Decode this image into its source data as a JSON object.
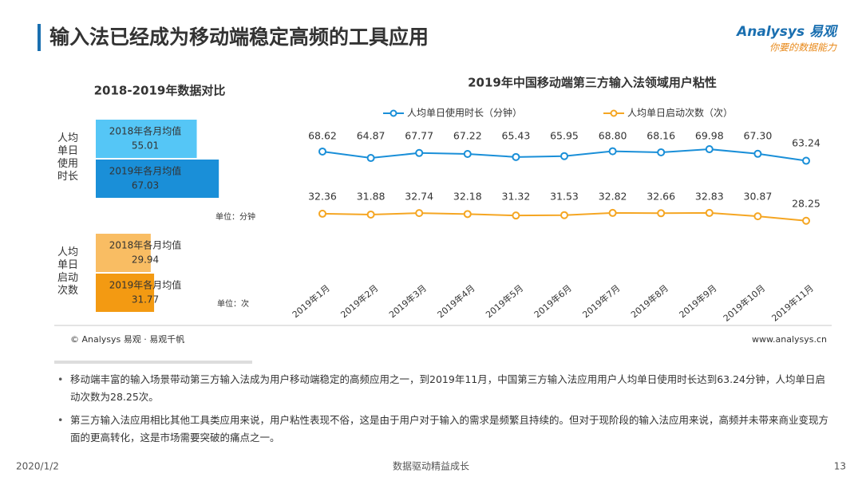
{
  "header": {
    "title": "输入法已经成为移动端稳定高频的工具应用",
    "logo": "Analysys 易观",
    "slogan": "你要的数据能力"
  },
  "chart_data": [
    {
      "type": "hbar",
      "title": "2018-2019年数据对比",
      "groups": [
        {
          "name": "人均单日使用时长",
          "unit": "单位：分钟",
          "categories": [
            "2018年各月均值",
            "2019年各月均值"
          ],
          "values": [
            55.01,
            67.03
          ],
          "colors": [
            "#55c6f6",
            "#1a8fd8"
          ]
        },
        {
          "name": "人均单日启动次数",
          "unit": "单位：次",
          "categories": [
            "2018年各月均值",
            "2019年各月均值"
          ],
          "values": [
            29.94,
            31.77
          ],
          "colors": [
            "#f9bd63",
            "#f39a12"
          ]
        }
      ]
    },
    {
      "type": "line",
      "title": "2019年中国移动端第三方输入法领域用户粘性",
      "categories": [
        "2019年1月",
        "2019年2月",
        "2019年3月",
        "2019年4月",
        "2019年5月",
        "2019年6月",
        "2019年7月",
        "2019年8月",
        "2019年9月",
        "2019年10月",
        "2019年11月"
      ],
      "series": [
        {
          "name": "人均单日使用时长（分钟）",
          "color": "#1a8fd8",
          "values": [
            68.62,
            64.87,
            67.77,
            67.22,
            65.43,
            65.95,
            68.8,
            68.16,
            69.98,
            67.3,
            63.24
          ],
          "value_labels": [
            "68.62",
            "64.87",
            "67.77",
            "67.22",
            "65.43",
            "65.95",
            "68.80",
            "68.16",
            "69.98",
            "67.30",
            "63.24"
          ]
        },
        {
          "name": "人均单日启动次数（次）",
          "color": "#f5a623",
          "values": [
            32.36,
            31.88,
            32.74,
            32.18,
            31.32,
            31.53,
            32.82,
            32.66,
            32.83,
            30.87,
            28.25
          ]
        }
      ]
    }
  ],
  "source": "© Analysys 易观 · 易观千帆",
  "website": "www.analysys.cn",
  "bullets": [
    "移动端丰富的输入场景带动第三方输入法成为用户移动端稳定的高频应用之一，到2019年11月，中国第三方输入法应用用户人均单日使用时长达到63.24分钟，人均单日启动次数为28.25次。",
    "第三方输入法应用相比其他工具类应用来说，用户粘性表现不俗，这是由于用户对于输入的需求是频繁且持续的。但对于现阶段的输入法应用来说，高频并未带来商业变现方面的更高转化，这是市场需要突破的痛点之一。"
  ],
  "footer": {
    "date": "2020/1/2",
    "motto": "数据驱动精益成长",
    "page": "13"
  }
}
